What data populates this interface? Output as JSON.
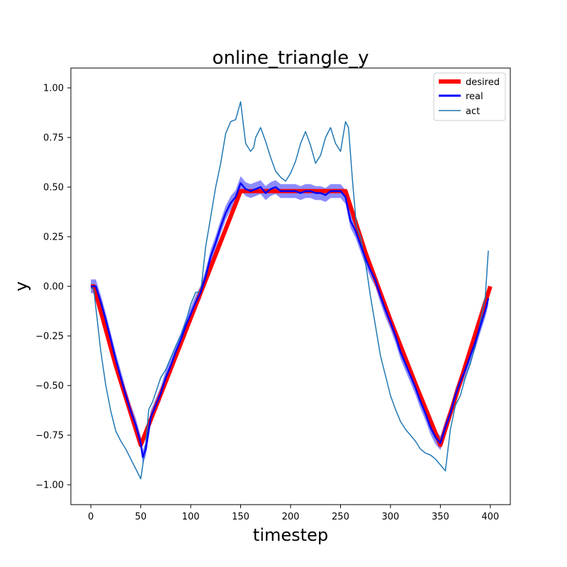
{
  "chart_data": {
    "type": "line",
    "title": "online_triangle_y",
    "xlabel": "timestep",
    "ylabel": "y",
    "xlim": [
      -20,
      420
    ],
    "ylim": [
      -1.1,
      1.1
    ],
    "xticks": [
      0,
      50,
      100,
      150,
      200,
      250,
      300,
      350,
      400
    ],
    "yticks": [
      -1.0,
      -0.75,
      -0.5,
      -0.25,
      0.0,
      0.25,
      0.5,
      0.75,
      1.0
    ],
    "ytick_labels": [
      "−1.00",
      "−0.75",
      "−0.50",
      "−0.25",
      "0.00",
      "0.25",
      "0.50",
      "0.75",
      "1.00"
    ],
    "grid": false,
    "legend_position": "top-right",
    "colors": {
      "desired": "#ff0000",
      "real": "#0000ff",
      "real_band": "#0000ff",
      "act": "#1f77b4"
    },
    "series": [
      {
        "name": "desired",
        "x": [
          0,
          3,
          25,
          50,
          75,
          100,
          125,
          150,
          175,
          200,
          225,
          255,
          275,
          300,
          325,
          350,
          375,
          400
        ],
        "y": [
          0.0,
          0.0,
          -0.4,
          -0.8,
          -0.48,
          -0.16,
          0.16,
          0.48,
          0.48,
          0.48,
          0.48,
          0.48,
          0.17,
          -0.17,
          -0.49,
          -0.8,
          -0.4,
          0.0
        ]
      },
      {
        "name": "real",
        "x": [
          0,
          5,
          10,
          15,
          20,
          25,
          30,
          35,
          40,
          45,
          50,
          52,
          55,
          60,
          65,
          70,
          75,
          80,
          85,
          90,
          95,
          100,
          105,
          110,
          115,
          120,
          125,
          130,
          135,
          140,
          145,
          150,
          155,
          160,
          165,
          170,
          175,
          180,
          185,
          190,
          195,
          200,
          205,
          210,
          215,
          220,
          225,
          230,
          235,
          240,
          245,
          250,
          255,
          260,
          265,
          270,
          275,
          280,
          285,
          290,
          295,
          300,
          305,
          310,
          315,
          320,
          325,
          330,
          335,
          340,
          345,
          350,
          355,
          360,
          365,
          370,
          375,
          380,
          385,
          390,
          395,
          398
        ],
        "y": [
          0.0,
          0.0,
          -0.08,
          -0.17,
          -0.27,
          -0.37,
          -0.46,
          -0.55,
          -0.63,
          -0.7,
          -0.79,
          -0.86,
          -0.82,
          -0.66,
          -0.6,
          -0.54,
          -0.46,
          -0.4,
          -0.33,
          -0.27,
          -0.2,
          -0.14,
          -0.08,
          -0.03,
          0.05,
          0.15,
          0.22,
          0.3,
          0.37,
          0.42,
          0.45,
          0.52,
          0.49,
          0.48,
          0.49,
          0.5,
          0.47,
          0.49,
          0.5,
          0.48,
          0.48,
          0.48,
          0.48,
          0.47,
          0.48,
          0.48,
          0.47,
          0.47,
          0.46,
          0.48,
          0.48,
          0.48,
          0.45,
          0.33,
          0.28,
          0.21,
          0.14,
          0.08,
          0.03,
          -0.05,
          -0.12,
          -0.18,
          -0.25,
          -0.33,
          -0.39,
          -0.45,
          -0.51,
          -0.58,
          -0.64,
          -0.71,
          -0.76,
          -0.79,
          -0.71,
          -0.64,
          -0.55,
          -0.48,
          -0.42,
          -0.35,
          -0.28,
          -0.2,
          -0.12,
          -0.06
        ]
      },
      {
        "name": "act",
        "x": [
          0,
          3,
          6,
          10,
          15,
          20,
          25,
          30,
          35,
          40,
          45,
          50,
          52,
          55,
          58,
          62,
          66,
          70,
          75,
          80,
          85,
          90,
          95,
          100,
          105,
          110,
          115,
          120,
          125,
          130,
          135,
          140,
          145,
          150,
          155,
          160,
          163,
          165,
          170,
          175,
          180,
          185,
          190,
          195,
          200,
          205,
          210,
          215,
          220,
          225,
          230,
          235,
          240,
          245,
          250,
          255,
          258,
          262,
          266,
          270,
          275,
          280,
          285,
          290,
          295,
          300,
          305,
          310,
          315,
          320,
          325,
          330,
          335,
          340,
          345,
          350,
          355,
          360,
          365,
          370,
          375,
          380,
          385,
          390,
          395,
          398
        ],
        "y": [
          0.0,
          -0.02,
          -0.15,
          -0.33,
          -0.5,
          -0.63,
          -0.73,
          -0.78,
          -0.82,
          -0.87,
          -0.92,
          -0.97,
          -0.9,
          -0.79,
          -0.62,
          -0.58,
          -0.52,
          -0.46,
          -0.42,
          -0.36,
          -0.3,
          -0.25,
          -0.18,
          -0.09,
          -0.03,
          -0.03,
          0.2,
          0.35,
          0.5,
          0.62,
          0.77,
          0.83,
          0.84,
          0.93,
          0.72,
          0.68,
          0.7,
          0.75,
          0.8,
          0.73,
          0.65,
          0.58,
          0.55,
          0.53,
          0.57,
          0.63,
          0.72,
          0.78,
          0.71,
          0.62,
          0.66,
          0.75,
          0.8,
          0.72,
          0.68,
          0.83,
          0.8,
          0.53,
          0.3,
          0.25,
          0.12,
          -0.05,
          -0.2,
          -0.35,
          -0.45,
          -0.55,
          -0.62,
          -0.68,
          -0.72,
          -0.75,
          -0.78,
          -0.82,
          -0.84,
          -0.85,
          -0.87,
          -0.9,
          -0.93,
          -0.72,
          -0.6,
          -0.55,
          -0.46,
          -0.39,
          -0.3,
          -0.18,
          -0.05,
          0.18
        ]
      }
    ]
  }
}
